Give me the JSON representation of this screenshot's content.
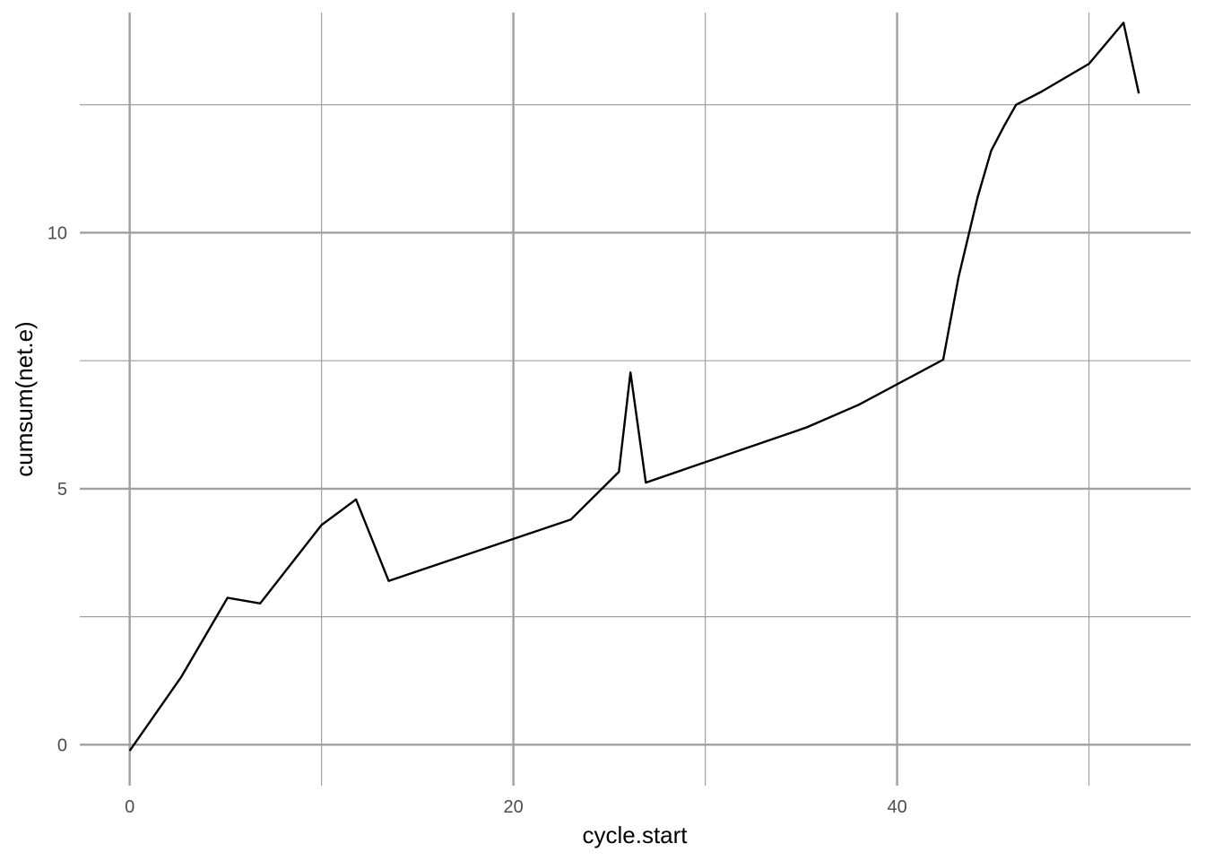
{
  "chart_data": {
    "type": "line",
    "title": "",
    "xlabel": "cycle.start",
    "ylabel": "cumsum(net.e)",
    "xlim": [
      -2.6,
      55.3
    ],
    "ylim": [
      -0.8,
      14.3
    ],
    "x_ticks": [
      0,
      20,
      40
    ],
    "x_minor_ticks": [
      10,
      30,
      50
    ],
    "y_ticks": [
      0,
      5,
      10
    ],
    "y_minor_ticks": [
      2.5,
      7.5,
      12.5
    ],
    "grid": true,
    "legend": "none",
    "line_color": "#000000",
    "grid_color": "#a0a0a0",
    "series": [
      {
        "x": [
          0,
          2.7,
          5.1,
          6.8,
          10.0,
          11.8,
          13.5,
          23.0,
          25.5,
          26.1,
          26.9,
          35.3,
          38.0,
          42.4,
          43.2,
          44.2,
          44.9,
          45.6,
          46.2,
          47.5,
          50.0,
          51.8,
          52.6
        ],
        "y": [
          -0.12,
          1.33,
          2.87,
          2.76,
          4.29,
          4.79,
          3.2,
          4.4,
          5.33,
          7.27,
          5.12,
          6.2,
          6.64,
          7.52,
          9.13,
          10.7,
          11.6,
          12.1,
          12.5,
          12.75,
          13.3,
          14.1,
          12.72
        ]
      }
    ]
  }
}
